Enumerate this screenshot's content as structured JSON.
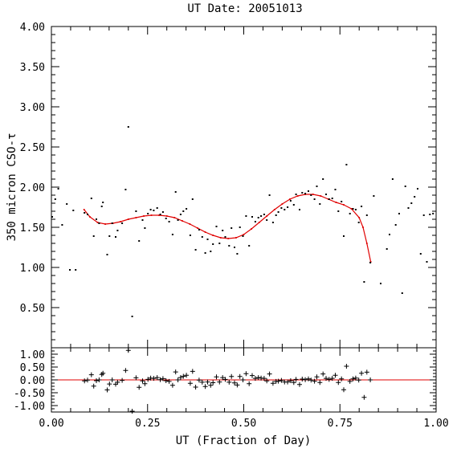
{
  "chart_data": [
    {
      "panel": "main",
      "type": "scatter",
      "title": "UT Date: 20051013",
      "ylabel": "350 micron CSO-τ",
      "xlim": [
        0.0,
        1.0
      ],
      "ylim": [
        0.0,
        4.0
      ],
      "y_ticks": [
        0.5,
        1.0,
        1.5,
        2.0,
        2.5,
        3.0,
        3.5,
        4.0
      ],
      "y_tick_labels": [
        "0.50",
        "1.00",
        "1.50",
        "2.00",
        "2.50",
        "3.00",
        "3.50",
        "4.00"
      ],
      "point_color": "#000000",
      "fit_color": "#e00000",
      "points": [
        [
          0.002,
          1.63
        ],
        [
          0.01,
          1.85
        ],
        [
          0.018,
          1.98
        ],
        [
          0.028,
          1.53
        ],
        [
          0.04,
          1.79
        ],
        [
          0.048,
          0.97
        ],
        [
          0.057,
          1.71
        ],
        [
          0.063,
          0.97
        ],
        [
          0.086,
          1.68
        ],
        [
          0.094,
          1.66
        ],
        [
          0.104,
          1.86
        ],
        [
          0.11,
          1.39
        ],
        [
          0.117,
          1.6
        ],
        [
          0.124,
          1.55
        ],
        [
          0.131,
          1.76
        ],
        [
          0.134,
          1.81
        ],
        [
          0.145,
          1.16
        ],
        [
          0.151,
          1.39
        ],
        [
          0.158,
          1.55
        ],
        [
          0.167,
          1.38
        ],
        [
          0.172,
          1.46
        ],
        [
          0.184,
          1.55
        ],
        [
          0.193,
          1.97
        ],
        [
          0.2,
          2.75
        ],
        [
          0.21,
          0.39
        ],
        [
          0.22,
          1.7
        ],
        [
          0.228,
          1.33
        ],
        [
          0.237,
          1.59
        ],
        [
          0.243,
          1.49
        ],
        [
          0.251,
          1.67
        ],
        [
          0.258,
          1.72
        ],
        [
          0.266,
          1.71
        ],
        [
          0.275,
          1.74
        ],
        [
          0.283,
          1.66
        ],
        [
          0.29,
          1.69
        ],
        [
          0.298,
          1.61
        ],
        [
          0.306,
          1.57
        ],
        [
          0.315,
          1.41
        ],
        [
          0.323,
          1.94
        ],
        [
          0.329,
          1.59
        ],
        [
          0.336,
          1.66
        ],
        [
          0.343,
          1.7
        ],
        [
          0.351,
          1.73
        ],
        [
          0.361,
          1.4
        ],
        [
          0.367,
          1.85
        ],
        [
          0.375,
          1.22
        ],
        [
          0.384,
          1.47
        ],
        [
          0.392,
          1.38
        ],
        [
          0.4,
          1.18
        ],
        [
          0.406,
          1.35
        ],
        [
          0.414,
          1.2
        ],
        [
          0.42,
          1.29
        ],
        [
          0.429,
          1.51
        ],
        [
          0.437,
          1.3
        ],
        [
          0.445,
          1.46
        ],
        [
          0.452,
          1.38
        ],
        [
          0.462,
          1.27
        ],
        [
          0.468,
          1.49
        ],
        [
          0.476,
          1.25
        ],
        [
          0.483,
          1.17
        ],
        [
          0.49,
          1.5
        ],
        [
          0.498,
          1.39
        ],
        [
          0.506,
          1.64
        ],
        [
          0.514,
          1.27
        ],
        [
          0.522,
          1.63
        ],
        [
          0.53,
          1.57
        ],
        [
          0.538,
          1.62
        ],
        [
          0.545,
          1.64
        ],
        [
          0.553,
          1.66
        ],
        [
          0.56,
          1.59
        ],
        [
          0.567,
          1.9
        ],
        [
          0.576,
          1.56
        ],
        [
          0.584,
          1.65
        ],
        [
          0.59,
          1.69
        ],
        [
          0.598,
          1.74
        ],
        [
          0.606,
          1.72
        ],
        [
          0.614,
          1.75
        ],
        [
          0.622,
          1.83
        ],
        [
          0.63,
          1.78
        ],
        [
          0.636,
          1.91
        ],
        [
          0.645,
          1.72
        ],
        [
          0.652,
          1.93
        ],
        [
          0.66,
          1.92
        ],
        [
          0.668,
          1.95
        ],
        [
          0.675,
          1.9
        ],
        [
          0.684,
          1.85
        ],
        [
          0.69,
          2.01
        ],
        [
          0.698,
          1.79
        ],
        [
          0.706,
          2.1
        ],
        [
          0.714,
          1.91
        ],
        [
          0.722,
          1.85
        ],
        [
          0.73,
          1.86
        ],
        [
          0.738,
          1.97
        ],
        [
          0.746,
          1.7
        ],
        [
          0.754,
          1.82
        ],
        [
          0.76,
          1.39
        ],
        [
          0.767,
          2.28
        ],
        [
          0.776,
          1.67
        ],
        [
          0.784,
          1.73
        ],
        [
          0.791,
          1.72
        ],
        [
          0.799,
          1.56
        ],
        [
          0.806,
          1.76
        ],
        [
          0.813,
          0.82
        ],
        [
          0.82,
          1.65
        ],
        [
          0.829,
          1.06
        ],
        [
          0.838,
          1.89
        ],
        [
          0.856,
          0.8
        ],
        [
          0.872,
          1.23
        ],
        [
          0.879,
          1.41
        ],
        [
          0.887,
          2.1
        ],
        [
          0.895,
          1.53
        ],
        [
          0.904,
          1.67
        ],
        [
          0.912,
          0.68
        ],
        [
          0.92,
          2.01
        ],
        [
          0.928,
          1.74
        ],
        [
          0.936,
          1.8
        ],
        [
          0.944,
          1.88
        ],
        [
          0.952,
          1.98
        ],
        [
          0.96,
          1.17
        ],
        [
          0.968,
          1.65
        ],
        [
          0.976,
          1.07
        ],
        [
          0.984,
          1.66
        ],
        [
          0.992,
          1.67
        ]
      ],
      "fit_curve": [
        [
          0.085,
          1.72
        ],
        [
          0.1,
          1.63
        ],
        [
          0.12,
          1.56
        ],
        [
          0.14,
          1.54
        ],
        [
          0.16,
          1.55
        ],
        [
          0.18,
          1.57
        ],
        [
          0.2,
          1.6
        ],
        [
          0.22,
          1.62
        ],
        [
          0.24,
          1.64
        ],
        [
          0.26,
          1.65
        ],
        [
          0.28,
          1.65
        ],
        [
          0.3,
          1.64
        ],
        [
          0.32,
          1.62
        ],
        [
          0.34,
          1.58
        ],
        [
          0.36,
          1.54
        ],
        [
          0.38,
          1.49
        ],
        [
          0.4,
          1.44
        ],
        [
          0.42,
          1.4
        ],
        [
          0.44,
          1.37
        ],
        [
          0.46,
          1.36
        ],
        [
          0.48,
          1.37
        ],
        [
          0.5,
          1.41
        ],
        [
          0.52,
          1.48
        ],
        [
          0.54,
          1.56
        ],
        [
          0.56,
          1.64
        ],
        [
          0.58,
          1.72
        ],
        [
          0.6,
          1.79
        ],
        [
          0.62,
          1.85
        ],
        [
          0.64,
          1.89
        ],
        [
          0.66,
          1.91
        ],
        [
          0.68,
          1.91
        ],
        [
          0.7,
          1.89
        ],
        [
          0.72,
          1.85
        ],
        [
          0.74,
          1.81
        ],
        [
          0.76,
          1.78
        ],
        [
          0.78,
          1.73
        ],
        [
          0.8,
          1.62
        ],
        [
          0.81,
          1.5
        ],
        [
          0.82,
          1.3
        ],
        [
          0.83,
          1.07
        ]
      ]
    },
    {
      "panel": "residuals",
      "type": "scatter",
      "xlabel": "UT (Fraction of Day)",
      "xlim": [
        0.0,
        1.0
      ],
      "ylim": [
        -1.25,
        1.25
      ],
      "x_ticks": [
        0.0,
        0.25,
        0.5,
        0.75,
        1.0
      ],
      "x_tick_labels": [
        "0.00",
        "0.25",
        "0.50",
        "0.75",
        "1.00"
      ],
      "y_ticks": [
        -1.0,
        -0.5,
        0.0,
        0.5,
        1.0
      ],
      "y_tick_labels": [
        "-1.00",
        "-0.50",
        "0.00",
        "0.50",
        "1.00"
      ],
      "zero_line_color": "#e00000",
      "point_color": "#000000",
      "points": [
        [
          0.086,
          -0.04
        ],
        [
          0.094,
          -0.01
        ],
        [
          0.104,
          0.2
        ],
        [
          0.11,
          -0.24
        ],
        [
          0.117,
          -0.03
        ],
        [
          0.124,
          0.0
        ],
        [
          0.131,
          0.21
        ],
        [
          0.134,
          0.26
        ],
        [
          0.145,
          -0.39
        ],
        [
          0.151,
          -0.16
        ],
        [
          0.158,
          0.0
        ],
        [
          0.167,
          -0.17
        ],
        [
          0.172,
          -0.09
        ],
        [
          0.184,
          -0.02
        ],
        [
          0.193,
          0.37
        ],
        [
          0.2,
          1.15
        ],
        [
          0.21,
          -1.22
        ],
        [
          0.22,
          0.08
        ],
        [
          0.228,
          -0.29
        ],
        [
          0.237,
          -0.04
        ],
        [
          0.243,
          -0.15
        ],
        [
          0.251,
          0.02
        ],
        [
          0.258,
          0.07
        ],
        [
          0.266,
          0.06
        ],
        [
          0.275,
          0.09
        ],
        [
          0.283,
          0.01
        ],
        [
          0.29,
          0.05
        ],
        [
          0.298,
          -0.03
        ],
        [
          0.306,
          -0.06
        ],
        [
          0.315,
          -0.21
        ],
        [
          0.323,
          0.31
        ],
        [
          0.329,
          0.0
        ],
        [
          0.336,
          0.09
        ],
        [
          0.343,
          0.14
        ],
        [
          0.351,
          0.18
        ],
        [
          0.361,
          -0.13
        ],
        [
          0.367,
          0.33
        ],
        [
          0.375,
          -0.28
        ],
        [
          0.384,
          -0.01
        ],
        [
          0.392,
          -0.09
        ],
        [
          0.4,
          -0.26
        ],
        [
          0.406,
          -0.08
        ],
        [
          0.414,
          -0.21
        ],
        [
          0.42,
          -0.11
        ],
        [
          0.429,
          0.12
        ],
        [
          0.437,
          -0.08
        ],
        [
          0.445,
          0.09
        ],
        [
          0.452,
          0.02
        ],
        [
          0.462,
          -0.09
        ],
        [
          0.468,
          0.13
        ],
        [
          0.476,
          -0.12
        ],
        [
          0.483,
          -0.2
        ],
        [
          0.49,
          0.13
        ],
        [
          0.498,
          0.0
        ],
        [
          0.506,
          0.24
        ],
        [
          0.514,
          -0.15
        ],
        [
          0.522,
          0.17
        ],
        [
          0.53,
          0.06
        ],
        [
          0.538,
          0.09
        ],
        [
          0.545,
          0.07
        ],
        [
          0.553,
          0.06
        ],
        [
          0.56,
          -0.04
        ],
        [
          0.567,
          0.23
        ],
        [
          0.576,
          -0.13
        ],
        [
          0.584,
          -0.06
        ],
        [
          0.59,
          -0.05
        ],
        [
          0.598,
          -0.02
        ],
        [
          0.606,
          -0.08
        ],
        [
          0.614,
          -0.08
        ],
        [
          0.622,
          -0.03
        ],
        [
          0.63,
          -0.1
        ],
        [
          0.636,
          0.02
        ],
        [
          0.645,
          -0.18
        ],
        [
          0.652,
          0.03
        ],
        [
          0.66,
          0.01
        ],
        [
          0.668,
          0.04
        ],
        [
          0.675,
          -0.01
        ],
        [
          0.684,
          -0.05
        ],
        [
          0.69,
          0.12
        ],
        [
          0.698,
          -0.1
        ],
        [
          0.706,
          0.23
        ],
        [
          0.714,
          0.06
        ],
        [
          0.722,
          0.02
        ],
        [
          0.73,
          0.06
        ],
        [
          0.738,
          0.18
        ],
        [
          0.746,
          -0.1
        ],
        [
          0.754,
          0.04
        ],
        [
          0.76,
          -0.38
        ],
        [
          0.767,
          0.53
        ],
        [
          0.776,
          -0.06
        ],
        [
          0.784,
          0.04
        ],
        [
          0.791,
          0.07
        ],
        [
          0.799,
          -0.01
        ],
        [
          0.806,
          0.26
        ],
        [
          0.813,
          -0.68
        ],
        [
          0.82,
          0.3
        ],
        [
          0.829,
          0.0
        ]
      ]
    }
  ]
}
